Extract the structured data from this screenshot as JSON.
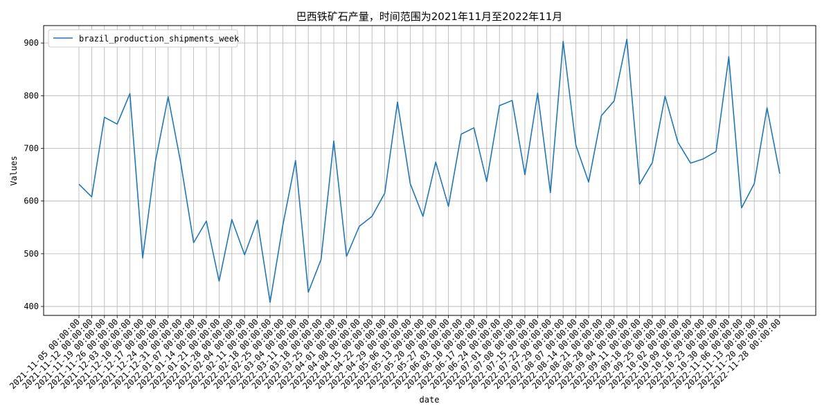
{
  "chart_data": {
    "type": "line",
    "title": "巴西铁矿石产量，时间范围为2021年11月至2022年11月",
    "xlabel": "date",
    "ylabel": "Values",
    "ylim": [
      383,
      933
    ],
    "yticks": [
      400,
      500,
      600,
      700,
      800,
      900
    ],
    "grid": true,
    "legend_position": "top-left",
    "line_color": "#1f77b4",
    "categories": [
      "2021-11-05 00:00:00",
      "2021-11-12 00:00:00",
      "2021-11-19 00:00:00",
      "2021-11-26 00:00:00",
      "2021-12-03 00:00:00",
      "2021-12-10 00:00:00",
      "2021-12-17 00:00:00",
      "2021-12-24 00:00:00",
      "2021-12-31 00:00:00",
      "2022-01-07 00:00:00",
      "2022-01-14 00:00:00",
      "2022-01-21 00:00:00",
      "2022-01-28 00:00:00",
      "2022-02-04 00:00:00",
      "2022-02-11 00:00:00",
      "2022-02-18 00:00:00",
      "2022-02-25 00:00:00",
      "2022-03-04 00:00:00",
      "2022-03-11 00:00:00",
      "2022-03-18 00:00:00",
      "2022-03-25 00:00:00",
      "2022-04-01 00:00:00",
      "2022-04-08 00:00:00",
      "2022-04-15 00:00:00",
      "2022-04-22 00:00:00",
      "2022-04-29 00:00:00",
      "2022-05-06 00:00:00",
      "2022-05-13 00:00:00",
      "2022-05-20 00:00:00",
      "2022-05-27 00:00:00",
      "2022-06-03 00:00:00",
      "2022-06-10 00:00:00",
      "2022-06-17 00:00:00",
      "2022-06-24 00:00:00",
      "2022-07-01 00:00:00",
      "2022-07-08 00:00:00",
      "2022-07-15 00:00:00",
      "2022-07-22 00:00:00",
      "2022-07-29 00:00:00",
      "2022-08-07 00:00:00",
      "2022-08-14 00:00:00",
      "2022-08-21 00:00:00",
      "2022-08-28 00:00:00",
      "2022-09-04 00:00:00",
      "2022-09-11 00:00:00",
      "2022-09-18 00:00:00",
      "2022-09-25 00:00:00",
      "2022-10-02 00:00:00",
      "2022-10-09 00:00:00",
      "2022-10-16 00:00:00",
      "2022-10-23 00:00:00",
      "2022-10-30 00:00:00",
      "2022-11-06 00:00:00",
      "2022-11-13 00:00:00",
      "2022-11-20 00:00:00",
      "2022-11-28 00:00:00"
    ],
    "series": [
      {
        "name": "brazil_production_shipments_week",
        "values": [
          632,
          608,
          759,
          746,
          804,
          492,
          675,
          798,
          671,
          521,
          562,
          448,
          565,
          498,
          564,
          408,
          554,
          677,
          427,
          489,
          714,
          495,
          552,
          571,
          615,
          788,
          633,
          571,
          674,
          590,
          727,
          739,
          637,
          781,
          791,
          650,
          805,
          616,
          903,
          706,
          636,
          762,
          790,
          907,
          632,
          673,
          799,
          712,
          672,
          680,
          694,
          874,
          587,
          633,
          777,
          652
        ]
      }
    ]
  }
}
